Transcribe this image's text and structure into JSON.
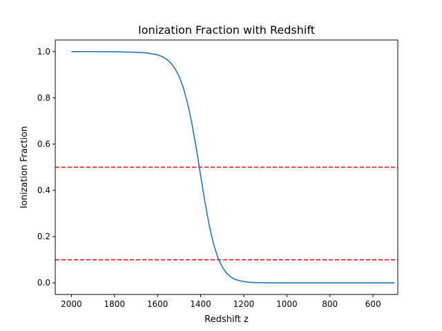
{
  "chart_data": {
    "type": "line",
    "title": "Ionization Fraction with Redshift",
    "xlabel": "Redshift z",
    "ylabel": "Ionization Fraction",
    "xlim": [
      2075,
      485
    ],
    "ylim": [
      -0.05,
      1.05
    ],
    "x_inverted": true,
    "grid": false,
    "xticks": [
      2000,
      1800,
      1600,
      1400,
      1200,
      1000,
      800,
      600
    ],
    "xtick_labels": [
      "2000",
      "1800",
      "1600",
      "1400",
      "1200",
      "1000",
      "800",
      "600"
    ],
    "yticks": [
      0.0,
      0.2,
      0.4,
      0.6,
      0.8,
      1.0
    ],
    "ytick_labels": [
      "0.0",
      "0.2",
      "0.4",
      "0.6",
      "0.8",
      "1.0"
    ],
    "series": [
      {
        "color": "#1f77b4",
        "x": [
          2000,
          1900,
          1800,
          1700,
          1650,
          1600,
          1580,
          1560,
          1540,
          1520,
          1500,
          1480,
          1460,
          1440,
          1420,
          1400,
          1380,
          1360,
          1340,
          1320,
          1300,
          1280,
          1260,
          1240,
          1220,
          1200,
          1180,
          1160,
          1140,
          1120,
          1100,
          1080,
          1050,
          1000,
          900,
          800,
          700,
          600,
          500
        ],
        "y": [
          1.0,
          1.0,
          0.999,
          0.997,
          0.994,
          0.986,
          0.979,
          0.968,
          0.952,
          0.928,
          0.893,
          0.843,
          0.774,
          0.686,
          0.58,
          0.464,
          0.349,
          0.248,
          0.168,
          0.109,
          0.069,
          0.042,
          0.025,
          0.015,
          0.0095,
          0.0059,
          0.0036,
          0.0021,
          0.0012,
          0.0007,
          0.0004,
          0.0002,
          0.0001,
          0.0,
          0.0,
          0.0,
          0.0,
          0.0,
          0.0
        ]
      }
    ],
    "reference_lines": [
      {
        "orientation": "horizontal",
        "y": 0.5,
        "color": "#ff0000",
        "style": "dashed"
      },
      {
        "orientation": "horizontal",
        "y": 0.1,
        "color": "#ff0000",
        "style": "dashed"
      }
    ]
  }
}
